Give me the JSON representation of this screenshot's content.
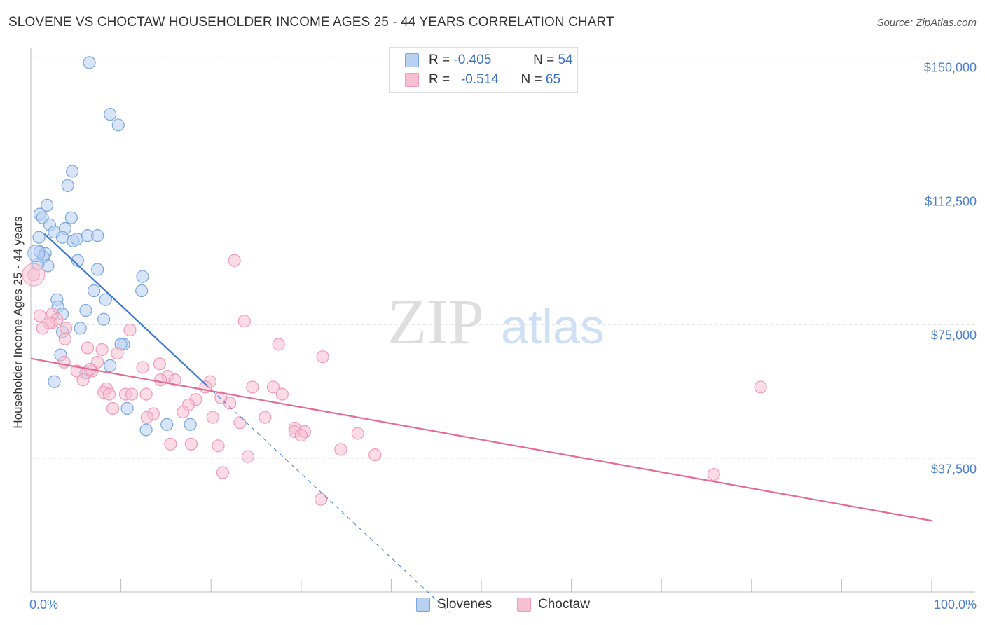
{
  "chart_data": {
    "type": "scatter",
    "title": "SLOVENE VS CHOCTAW HOUSEHOLDER INCOME AGES 25 - 44 YEARS CORRELATION CHART",
    "source": "Source: ZipAtlas.com",
    "xlabel": "",
    "ylabel": "Householder Income Ages 25 - 44 years",
    "xlim": [
      0,
      100
    ],
    "ylim": [
      0,
      157000
    ],
    "x_tick_labels": [
      "0.0%",
      "100.0%"
    ],
    "y_ticks": [
      37500,
      75000,
      112500,
      150000
    ],
    "y_tick_labels": [
      "$37,500",
      "$75,000",
      "$112,500",
      "$150,000"
    ],
    "legend_placement": "top-center",
    "watermark": "ZIPatlas",
    "series": [
      {
        "name": "Slovenes",
        "color": "#6fa0e0",
        "R": "-0.405",
        "N": "54",
        "trend": {
          "x0": 1.5,
          "y0": 100500,
          "x1": 19.5,
          "y1": 58000,
          "dash_to_x": 46.5
        },
        "points": [
          [
            6.5,
            148500
          ],
          [
            9.7,
            131000
          ],
          [
            8.8,
            134000
          ],
          [
            4.6,
            118000
          ],
          [
            4.1,
            114000
          ],
          [
            1.0,
            106000
          ],
          [
            1.3,
            105000
          ],
          [
            1.8,
            108500
          ],
          [
            4.5,
            105000
          ],
          [
            2.1,
            103000
          ],
          [
            2.6,
            101000
          ],
          [
            3.8,
            102000
          ],
          [
            0.9,
            99500
          ],
          [
            3.5,
            99500
          ],
          [
            4.7,
            98500
          ],
          [
            5.1,
            99000
          ],
          [
            6.3,
            100000
          ],
          [
            7.4,
            100000
          ],
          [
            1.0,
            95500
          ],
          [
            1.6,
            95000
          ],
          [
            1.4,
            94000
          ],
          [
            5.2,
            93000
          ],
          [
            1.9,
            91500
          ],
          [
            0.8,
            92000
          ],
          [
            7.4,
            90500
          ],
          [
            12.4,
            88500
          ],
          [
            7.0,
            84500
          ],
          [
            12.3,
            84500
          ],
          [
            2.9,
            82000
          ],
          [
            8.3,
            82000
          ],
          [
            3.0,
            80000
          ],
          [
            6.1,
            79000
          ],
          [
            3.5,
            78000
          ],
          [
            8.1,
            76500
          ],
          [
            5.5,
            74000
          ],
          [
            3.5,
            73000
          ],
          [
            10.3,
            69500
          ],
          [
            10.0,
            69500
          ],
          [
            3.3,
            66500
          ],
          [
            8.8,
            63500
          ],
          [
            6.1,
            61500
          ],
          [
            2.6,
            59000
          ],
          [
            10.7,
            51500
          ],
          [
            12.8,
            45500
          ],
          [
            15.1,
            47000
          ],
          [
            17.7,
            47000
          ]
        ]
      },
      {
        "name": "Choctaw",
        "color": "#f08aaa",
        "R": "-0.514",
        "N": "65",
        "trend": {
          "x0": 0,
          "y0": 65500,
          "x1": 100,
          "y1": 20000
        },
        "points": [
          [
            0.3,
            89000
          ],
          [
            22.6,
            93000
          ],
          [
            2.4,
            78000
          ],
          [
            1.0,
            77500
          ],
          [
            2.9,
            76500
          ],
          [
            23.7,
            76000
          ],
          [
            2.3,
            75500
          ],
          [
            2.0,
            75500
          ],
          [
            1.3,
            74000
          ],
          [
            3.9,
            74000
          ],
          [
            11.0,
            73500
          ],
          [
            3.8,
            71000
          ],
          [
            27.5,
            69500
          ],
          [
            6.3,
            68500
          ],
          [
            7.9,
            68000
          ],
          [
            9.6,
            67000
          ],
          [
            32.4,
            66000
          ],
          [
            3.7,
            64500
          ],
          [
            7.4,
            64500
          ],
          [
            14.3,
            64000
          ],
          [
            12.4,
            63000
          ],
          [
            6.8,
            62000
          ],
          [
            6.6,
            62500
          ],
          [
            5.1,
            62000
          ],
          [
            15.2,
            60500
          ],
          [
            14.4,
            59500
          ],
          [
            16.0,
            59500
          ],
          [
            5.8,
            59500
          ],
          [
            19.9,
            59000
          ],
          [
            19.4,
            57500
          ],
          [
            24.6,
            57500
          ],
          [
            8.4,
            57000
          ],
          [
            26.9,
            57500
          ],
          [
            81.0,
            57500
          ],
          [
            8.1,
            56000
          ],
          [
            10.5,
            55500
          ],
          [
            11.2,
            55500
          ],
          [
            12.8,
            55500
          ],
          [
            27.9,
            55500
          ],
          [
            18.3,
            54000
          ],
          [
            22.1,
            53000
          ],
          [
            21.1,
            54500
          ],
          [
            9.1,
            51500
          ],
          [
            17.5,
            52500
          ],
          [
            16.9,
            50500
          ],
          [
            13.6,
            50000
          ],
          [
            12.9,
            49000
          ],
          [
            20.2,
            49000
          ],
          [
            26.0,
            49000
          ],
          [
            23.2,
            47500
          ],
          [
            29.3,
            46000
          ],
          [
            29.3,
            45000
          ],
          [
            30.4,
            45000
          ],
          [
            36.3,
            44500
          ],
          [
            30.0,
            44000
          ],
          [
            15.5,
            41500
          ],
          [
            17.8,
            41500
          ],
          [
            20.8,
            41000
          ],
          [
            34.4,
            40000
          ],
          [
            24.1,
            38000
          ],
          [
            38.2,
            38500
          ],
          [
            21.3,
            33500
          ],
          [
            75.8,
            33000
          ],
          [
            32.2,
            26000
          ],
          [
            8.7,
            55500
          ]
        ]
      }
    ]
  },
  "legend": {
    "r_label": "R =",
    "n_label": "N =",
    "series": [
      {
        "name": "Slovenes",
        "r": "-0.405",
        "n": "54"
      },
      {
        "name": "Choctaw",
        "r": "-0.514",
        "n": "65"
      }
    ]
  },
  "colors": {
    "blue_fill": "#b8d0f2",
    "blue_stroke": "#7aa6e0",
    "blue_line": "#3a78d4",
    "pink_fill": "#f7c0d2",
    "pink_stroke": "#f09ab6",
    "pink_line": "#e56a96"
  }
}
